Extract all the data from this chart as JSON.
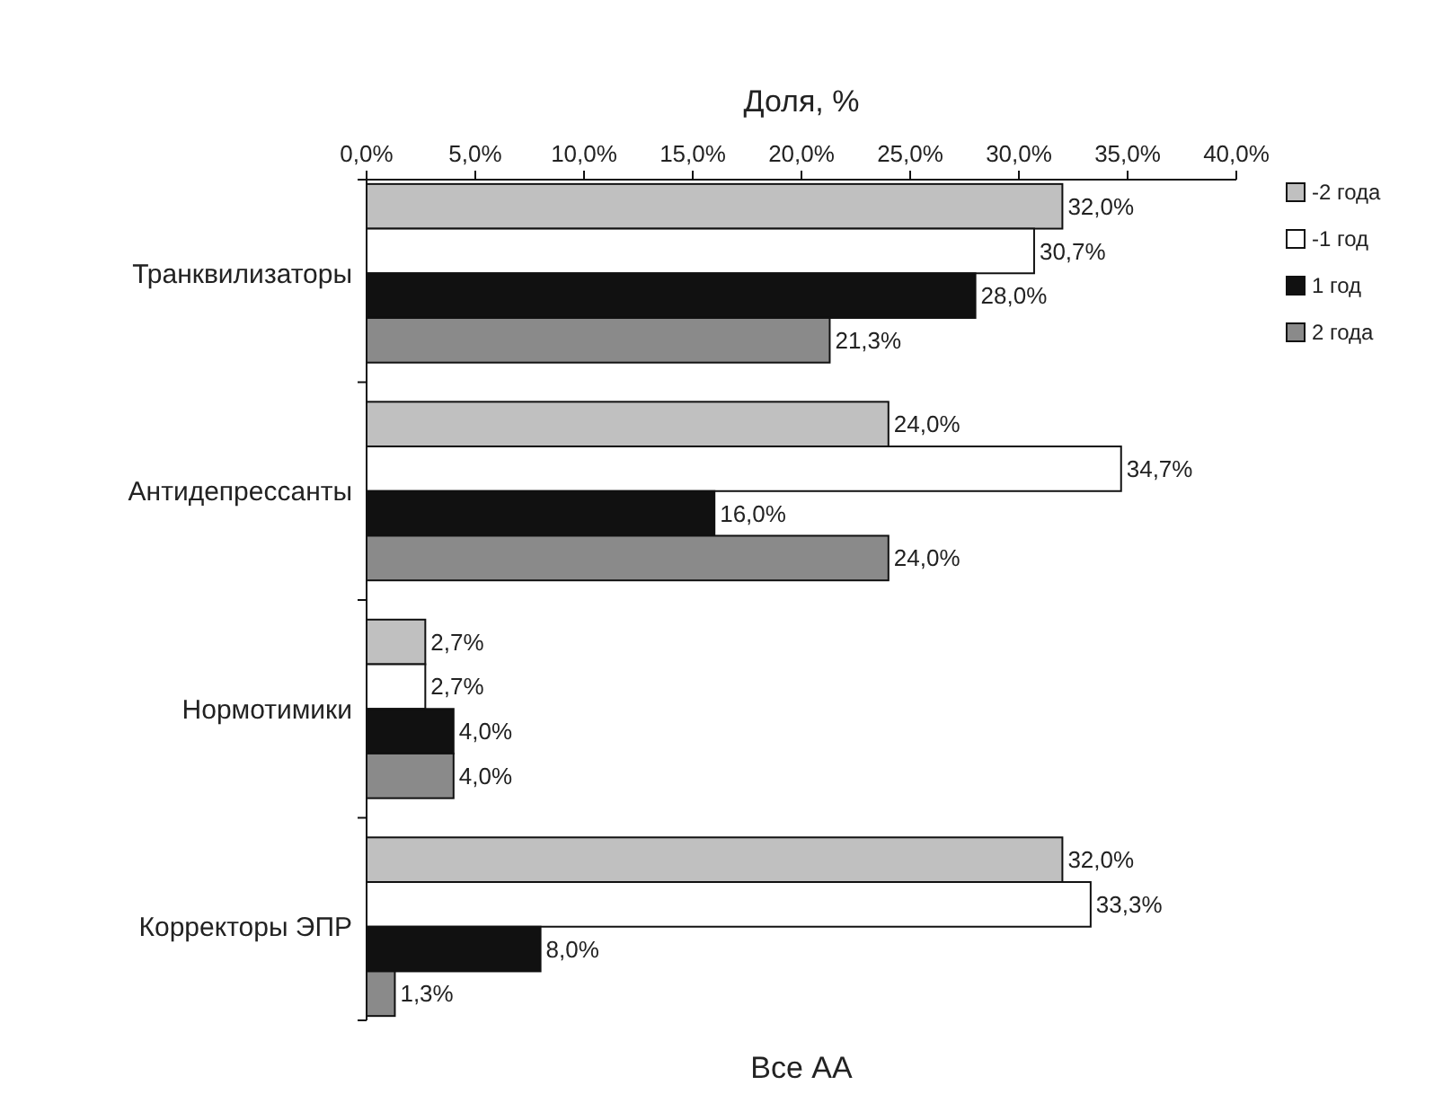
{
  "chart_data": {
    "type": "bar",
    "orientation": "horizontal",
    "title": "Все АА",
    "xlabel": "Доля, %",
    "categories": [
      "Транквилизаторы",
      "Антидепрессанты",
      "Нормотимики",
      "Корректоры ЭПР"
    ],
    "series": [
      {
        "name": "-2 года",
        "color": "#c0c0c0",
        "values": [
          32.0,
          24.0,
          2.7,
          32.0
        ],
        "value_labels": [
          "32,0%",
          "24,0%",
          "2,7%",
          "32,0%"
        ]
      },
      {
        "name": "-1 год",
        "color": "#ffffff",
        "values": [
          30.7,
          34.7,
          2.7,
          33.3
        ],
        "value_labels": [
          "30,7%",
          "34,7%",
          "2,7%",
          "33,3%"
        ]
      },
      {
        "name": "1 год",
        "color": "#111111",
        "values": [
          28.0,
          16.0,
          4.0,
          8.0
        ],
        "value_labels": [
          "28,0%",
          "16,0%",
          "4,0%",
          "8,0%"
        ]
      },
      {
        "name": "2 года",
        "color": "#8a8a8a",
        "values": [
          21.3,
          24.0,
          4.0,
          1.3
        ],
        "value_labels": [
          "21,3%",
          "24,0%",
          "4,0%",
          "1,3%"
        ]
      }
    ],
    "xlim": [
      0,
      40
    ],
    "xticks": [
      {
        "value": 0,
        "label": "0,0%"
      },
      {
        "value": 5,
        "label": "5,0%"
      },
      {
        "value": 10,
        "label": "10,0%"
      },
      {
        "value": 15,
        "label": "15,0%"
      },
      {
        "value": 20,
        "label": "20,0%"
      },
      {
        "value": 25,
        "label": "25,0%"
      },
      {
        "value": 30,
        "label": "30,0%"
      },
      {
        "value": 35,
        "label": "35,0%"
      },
      {
        "value": 40,
        "label": "40,0%"
      }
    ],
    "grid": false,
    "legend": "top right"
  }
}
